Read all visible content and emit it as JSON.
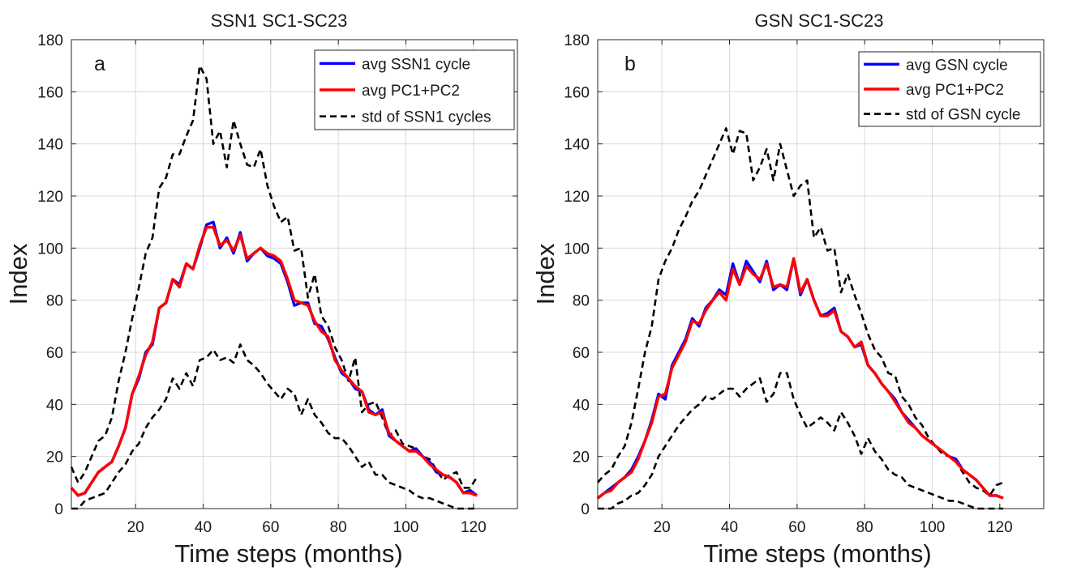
{
  "chart_data": [
    {
      "type": "line",
      "panel": "a",
      "title": "SSN1 SC1-SC23",
      "xlabel": "Time steps (months)",
      "ylabel": "Index",
      "xlim": [
        1,
        133
      ],
      "ylim": [
        0,
        180
      ],
      "xticks": [
        20,
        40,
        60,
        80,
        100,
        120
      ],
      "yticks": [
        0,
        20,
        40,
        60,
        80,
        100,
        120,
        140,
        160,
        180
      ],
      "grid": true,
      "legend_position": "top-right",
      "x_step": 2,
      "x_start": 1,
      "series": [
        {
          "name": "avg SSN1 cycle",
          "color": "#0000ff",
          "style": "solid",
          "values": [
            8,
            5,
            6,
            10,
            14,
            16,
            18,
            24,
            31,
            44,
            50,
            60,
            63,
            77,
            79,
            88,
            86,
            94,
            92,
            100,
            109,
            110,
            100,
            104,
            98,
            106,
            95,
            98,
            100,
            97,
            96,
            94,
            87,
            78,
            79,
            79,
            71,
            70,
            65,
            58,
            52,
            50,
            46,
            45,
            38,
            36,
            38,
            28,
            26,
            24,
            22,
            23,
            20,
            18,
            14,
            13,
            12,
            10,
            6,
            7,
            5
          ]
        },
        {
          "name": "avg PC1+PC2",
          "color": "#ff0000",
          "style": "solid",
          "values": [
            8,
            5,
            6,
            10,
            14,
            16,
            18,
            24,
            31,
            44,
            51,
            59,
            64,
            77,
            79,
            88,
            85,
            94,
            92,
            101,
            108,
            108,
            101,
            103,
            99,
            105,
            96,
            98,
            100,
            98,
            97,
            95,
            88,
            80,
            79,
            78,
            72,
            68,
            66,
            57,
            53,
            50,
            47,
            45,
            37,
            36,
            37,
            29,
            26,
            24,
            22,
            22,
            20,
            17,
            15,
            13,
            12,
            10,
            6,
            6,
            5
          ]
        },
        {
          "name": "std of SSN1 cycles",
          "color": "#000000",
          "style": "dashed",
          "values": [
            16,
            10,
            14,
            20,
            26,
            28,
            35,
            49,
            60,
            73,
            85,
            98,
            104,
            123,
            127,
            136,
            136,
            143,
            149,
            170,
            165,
            140,
            145,
            131,
            149,
            140,
            132,
            131,
            138,
            124,
            116,
            110,
            112,
            99,
            100,
            81,
            90,
            74,
            70,
            62,
            57,
            49,
            58,
            37,
            40,
            41,
            35,
            28,
            30,
            25,
            24,
            23,
            20,
            19,
            15,
            11,
            13,
            14,
            8,
            8,
            12
          ]
        },
        {
          "name": "std lower",
          "color": "#000000",
          "style": "dashed",
          "legend": false,
          "values": [
            0,
            0,
            3,
            4,
            5,
            6,
            10,
            14,
            17,
            22,
            25,
            31,
            35,
            38,
            42,
            50,
            46,
            52,
            47,
            57,
            58,
            61,
            57,
            58,
            56,
            63,
            57,
            55,
            52,
            48,
            45,
            42,
            46,
            44,
            36,
            42,
            36,
            33,
            29,
            27,
            27,
            24,
            20,
            16,
            18,
            13,
            13,
            10,
            9,
            8,
            7,
            5,
            4,
            4,
            3,
            2,
            1,
            0,
            0,
            0,
            0
          ]
        }
      ]
    },
    {
      "type": "line",
      "panel": "b",
      "title": "GSN SC1-SC23",
      "xlabel": "Time steps (months)",
      "ylabel": "Index",
      "xlim": [
        1,
        133
      ],
      "ylim": [
        0,
        180
      ],
      "xticks": [
        20,
        40,
        60,
        80,
        100,
        120
      ],
      "yticks": [
        0,
        20,
        40,
        60,
        80,
        100,
        120,
        140,
        160,
        180
      ],
      "grid": true,
      "legend_position": "top-right",
      "x_step": 2,
      "x_start": 1,
      "series": [
        {
          "name": "avg GSN cycle",
          "color": "#0000ff",
          "style": "solid",
          "values": [
            4,
            6,
            8,
            10,
            12,
            15,
            20,
            26,
            34,
            44,
            42,
            55,
            60,
            65,
            73,
            70,
            77,
            80,
            84,
            82,
            94,
            86,
            95,
            91,
            87,
            95,
            84,
            86,
            84,
            96,
            82,
            88,
            80,
            74,
            75,
            77,
            68,
            66,
            62,
            63,
            55,
            52,
            48,
            45,
            42,
            37,
            34,
            31,
            28,
            26,
            24,
            22,
            20,
            19,
            15,
            13,
            11,
            8,
            5,
            5,
            4
          ]
        },
        {
          "name": "avg PC1+PC2",
          "color": "#ff0000",
          "style": "solid",
          "values": [
            4,
            6,
            7,
            10,
            12,
            14,
            19,
            26,
            33,
            43,
            44,
            54,
            59,
            64,
            72,
            71,
            76,
            80,
            83,
            80,
            92,
            86,
            93,
            90,
            88,
            94,
            85,
            86,
            85,
            96,
            83,
            88,
            80,
            74,
            74,
            76,
            68,
            66,
            62,
            64,
            55,
            52,
            48,
            45,
            41,
            37,
            33,
            31,
            28,
            26,
            24,
            22,
            20,
            18,
            15,
            13,
            11,
            8,
            5,
            5,
            4
          ]
        },
        {
          "name": "std of GSN cycle",
          "color": "#000000",
          "style": "dashed",
          "values": [
            10,
            13,
            15,
            20,
            24,
            33,
            46,
            60,
            70,
            88,
            95,
            100,
            107,
            112,
            118,
            122,
            128,
            134,
            140,
            146,
            136,
            145,
            144,
            126,
            131,
            138,
            126,
            140,
            130,
            120,
            124,
            126,
            104,
            108,
            99,
            100,
            83,
            90,
            82,
            75,
            67,
            61,
            58,
            52,
            51,
            43,
            40,
            35,
            32,
            27,
            24,
            21,
            20,
            18,
            14,
            10,
            8,
            7,
            5,
            9,
            10
          ]
        },
        {
          "name": "std lower",
          "color": "#000000",
          "style": "dashed",
          "legend": false,
          "values": [
            0,
            0,
            0,
            2,
            3,
            5,
            6,
            9,
            13,
            20,
            24,
            28,
            32,
            35,
            38,
            40,
            43,
            42,
            44,
            46,
            46,
            43,
            46,
            48,
            50,
            41,
            44,
            52,
            52,
            42,
            36,
            31,
            33,
            35,
            33,
            30,
            37,
            33,
            28,
            21,
            27,
            22,
            19,
            15,
            13,
            12,
            9,
            8,
            7,
            6,
            5,
            4,
            3,
            3,
            2,
            1,
            0,
            0,
            0,
            0,
            0
          ]
        }
      ]
    }
  ]
}
